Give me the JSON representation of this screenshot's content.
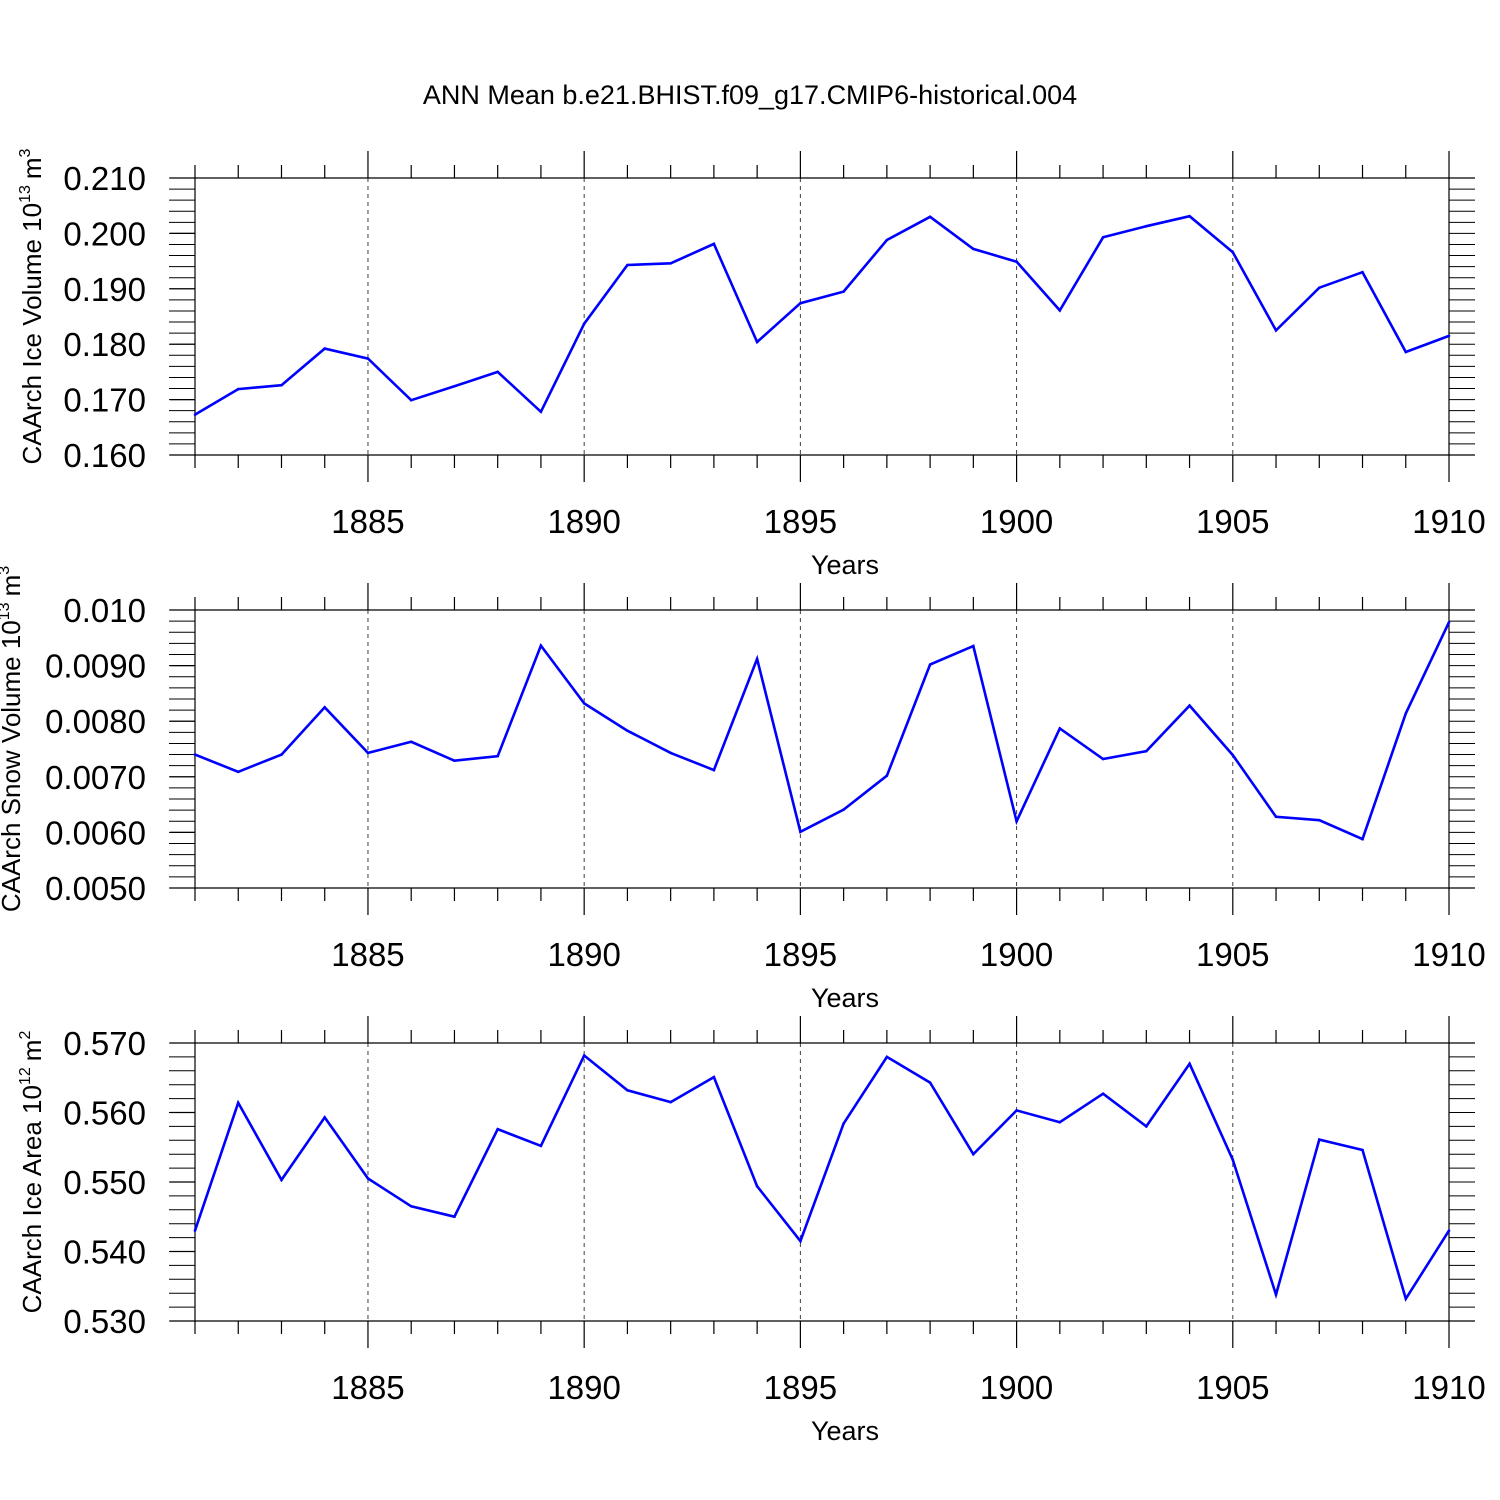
{
  "title": "ANN Mean b.e21.BHIST.f09_g17.CMIP6-historical.004",
  "colors": {
    "series": "#0000ff",
    "axis": "#000000",
    "grid": "#000000"
  },
  "chart_data": [
    {
      "type": "line",
      "ylabel": "CAArch Ice Volume 10",
      "ylabel_exponent": "13",
      "ylabel_unit": "m",
      "ylabel_unit_exponent": "3",
      "xlabel": "Years",
      "xlim": [
        1881,
        1910
      ],
      "ylim": [
        0.16,
        0.21
      ],
      "xticks": [
        1885,
        1890,
        1895,
        1900,
        1905,
        1910
      ],
      "xtick_labels": [
        "1885",
        "1890",
        "1895",
        "1900",
        "1905",
        "1910"
      ],
      "yticks": [
        0.16,
        0.17,
        0.18,
        0.19,
        0.2,
        0.21
      ],
      "ytick_labels": [
        "0.160",
        "0.170",
        "0.180",
        "0.190",
        "0.200",
        "0.210"
      ],
      "yminor_step": 0.002,
      "grid": "vertical dashed at major x ticks",
      "x": [
        1881,
        1882,
        1883,
        1884,
        1885,
        1886,
        1887,
        1888,
        1889,
        1890,
        1891,
        1892,
        1893,
        1894,
        1895,
        1896,
        1897,
        1898,
        1899,
        1900,
        1901,
        1902,
        1903,
        1904,
        1905,
        1906,
        1907,
        1908,
        1909,
        1910
      ],
      "values": [
        0.1673,
        0.1719,
        0.1726,
        0.1792,
        0.1774,
        0.1699,
        0.1724,
        0.175,
        0.1678,
        0.1837,
        0.1943,
        0.1946,
        0.1981,
        0.1804,
        0.1874,
        0.1895,
        0.1988,
        0.203,
        0.1972,
        0.1949,
        0.1861,
        0.1993,
        0.2013,
        0.2031,
        0.1966,
        0.1825,
        0.1902,
        0.193,
        0.1786,
        0.1815
      ]
    },
    {
      "type": "line",
      "ylabel": "CAArch Snow Volume 10",
      "ylabel_exponent": "13",
      "ylabel_unit": "m",
      "ylabel_unit_exponent": "3",
      "xlabel": "Years",
      "xlim": [
        1881,
        1910
      ],
      "ylim": [
        0.005,
        0.01
      ],
      "xticks": [
        1885,
        1890,
        1895,
        1900,
        1905,
        1910
      ],
      "xtick_labels": [
        "1885",
        "1890",
        "1895",
        "1900",
        "1905",
        "1910"
      ],
      "yticks": [
        0.005,
        0.006,
        0.007,
        0.008,
        0.009,
        0.01
      ],
      "ytick_labels": [
        "0.0050",
        "0.0060",
        "0.0070",
        "0.0080",
        "0.0090",
        "0.010"
      ],
      "yminor_step": 0.0002,
      "grid": "vertical dashed at major x ticks",
      "x": [
        1881,
        1882,
        1883,
        1884,
        1885,
        1886,
        1887,
        1888,
        1889,
        1890,
        1891,
        1892,
        1893,
        1894,
        1895,
        1896,
        1897,
        1898,
        1899,
        1900,
        1901,
        1902,
        1903,
        1904,
        1905,
        1906,
        1907,
        1908,
        1909,
        1910
      ],
      "values": [
        0.0074,
        0.00709,
        0.0074,
        0.00825,
        0.00743,
        0.00763,
        0.00729,
        0.00737,
        0.00936,
        0.00832,
        0.00783,
        0.00743,
        0.00712,
        0.00912,
        0.00601,
        0.00641,
        0.00702,
        0.00902,
        0.00935,
        0.0062,
        0.00787,
        0.00732,
        0.00746,
        0.00828,
        0.00739,
        0.00628,
        0.00622,
        0.00588,
        0.00814,
        0.00978
      ]
    },
    {
      "type": "line",
      "ylabel": "CAArch Ice Area 10",
      "ylabel_exponent": "12",
      "ylabel_unit": "m",
      "ylabel_unit_exponent": "2",
      "xlabel": "Years",
      "xlim": [
        1881,
        1910
      ],
      "ylim": [
        0.53,
        0.57
      ],
      "xticks": [
        1885,
        1890,
        1895,
        1900,
        1905,
        1910
      ],
      "xtick_labels": [
        "1885",
        "1890",
        "1895",
        "1900",
        "1905",
        "1910"
      ],
      "yticks": [
        0.53,
        0.54,
        0.55,
        0.56,
        0.57
      ],
      "ytick_labels": [
        "0.530",
        "0.540",
        "0.550",
        "0.560",
        "0.570"
      ],
      "yminor_step": 0.002,
      "grid": "vertical dashed at major x ticks",
      "x": [
        1881,
        1882,
        1883,
        1884,
        1885,
        1886,
        1887,
        1888,
        1889,
        1890,
        1891,
        1892,
        1893,
        1894,
        1895,
        1896,
        1897,
        1898,
        1899,
        1900,
        1901,
        1902,
        1903,
        1904,
        1905,
        1906,
        1907,
        1908,
        1909,
        1910
      ],
      "values": [
        0.543,
        0.5614,
        0.5503,
        0.5593,
        0.5505,
        0.5465,
        0.545,
        0.5576,
        0.5552,
        0.5682,
        0.5632,
        0.5615,
        0.5651,
        0.5494,
        0.5415,
        0.5584,
        0.568,
        0.5643,
        0.554,
        0.5603,
        0.5586,
        0.5627,
        0.558,
        0.567,
        0.5532,
        0.5338,
        0.5561,
        0.5546,
        0.5332,
        0.543
      ]
    }
  ]
}
